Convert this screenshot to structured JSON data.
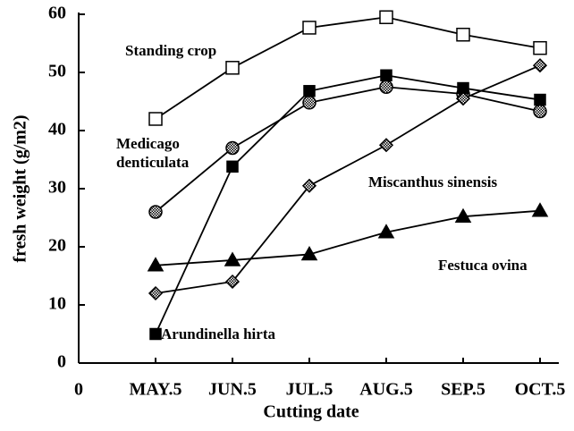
{
  "chart_data": {
    "type": "line",
    "x_label": "Cutting date",
    "y_label": "fresh weight (g/m2)",
    "x_origin_label": "0",
    "categories": [
      "MAY.5",
      "JUN.5",
      "JUL.5",
      "AUG.5",
      "SEP.5",
      "OCT.5"
    ],
    "ylim": [
      0,
      60
    ],
    "yticks": [
      0,
      10,
      20,
      30,
      40,
      50,
      60
    ],
    "series": [
      {
        "name": "Standing crop",
        "color": "#000000",
        "marker": "open-square",
        "values": [
          42,
          50.8,
          57.7,
          59.5,
          56.5,
          54.2
        ]
      },
      {
        "name": "Medicago denticulata",
        "color": "#000000",
        "marker": "hatched-circle",
        "values": [
          26,
          37,
          44.8,
          47.5,
          46.3,
          43.3
        ]
      },
      {
        "name": "Arundinella hirta",
        "color": "#000000",
        "marker": "filled-square",
        "values": [
          5,
          33.8,
          46.8,
          49.5,
          47.3,
          45.3
        ]
      },
      {
        "name": "Miscanthus sinensis",
        "color": "#000000",
        "marker": "hatched-diamond",
        "values": [
          12,
          14,
          30.5,
          37.5,
          45.5,
          51.2
        ]
      },
      {
        "name": "Festuca ovina",
        "color": "#000000",
        "marker": "filled-triangle",
        "values": [
          16.8,
          17.7,
          18.7,
          22.5,
          25.2,
          26.2
        ]
      }
    ]
  }
}
